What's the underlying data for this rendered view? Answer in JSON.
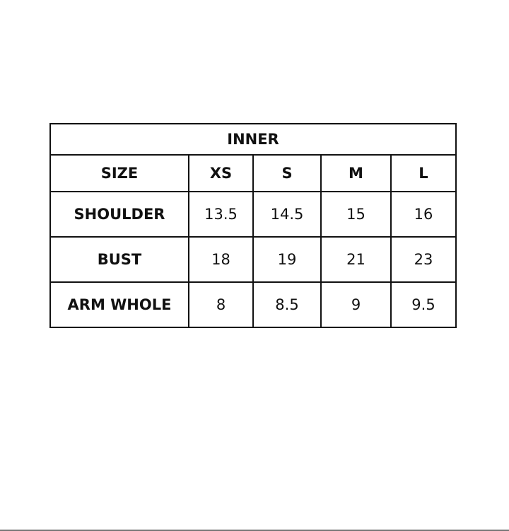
{
  "table": {
    "title": "INNER",
    "header": [
      "SIZE",
      "XS",
      "S",
      "M",
      "L"
    ],
    "rows": [
      {
        "label": "SHOULDER",
        "values": [
          "13.5",
          "14.5",
          "15",
          "16"
        ]
      },
      {
        "label": "BUST",
        "values": [
          "18",
          "19",
          "21",
          "23"
        ]
      },
      {
        "label": "ARM WHOLE",
        "values": [
          "8",
          "8.5",
          "9",
          "9.5"
        ]
      }
    ]
  }
}
